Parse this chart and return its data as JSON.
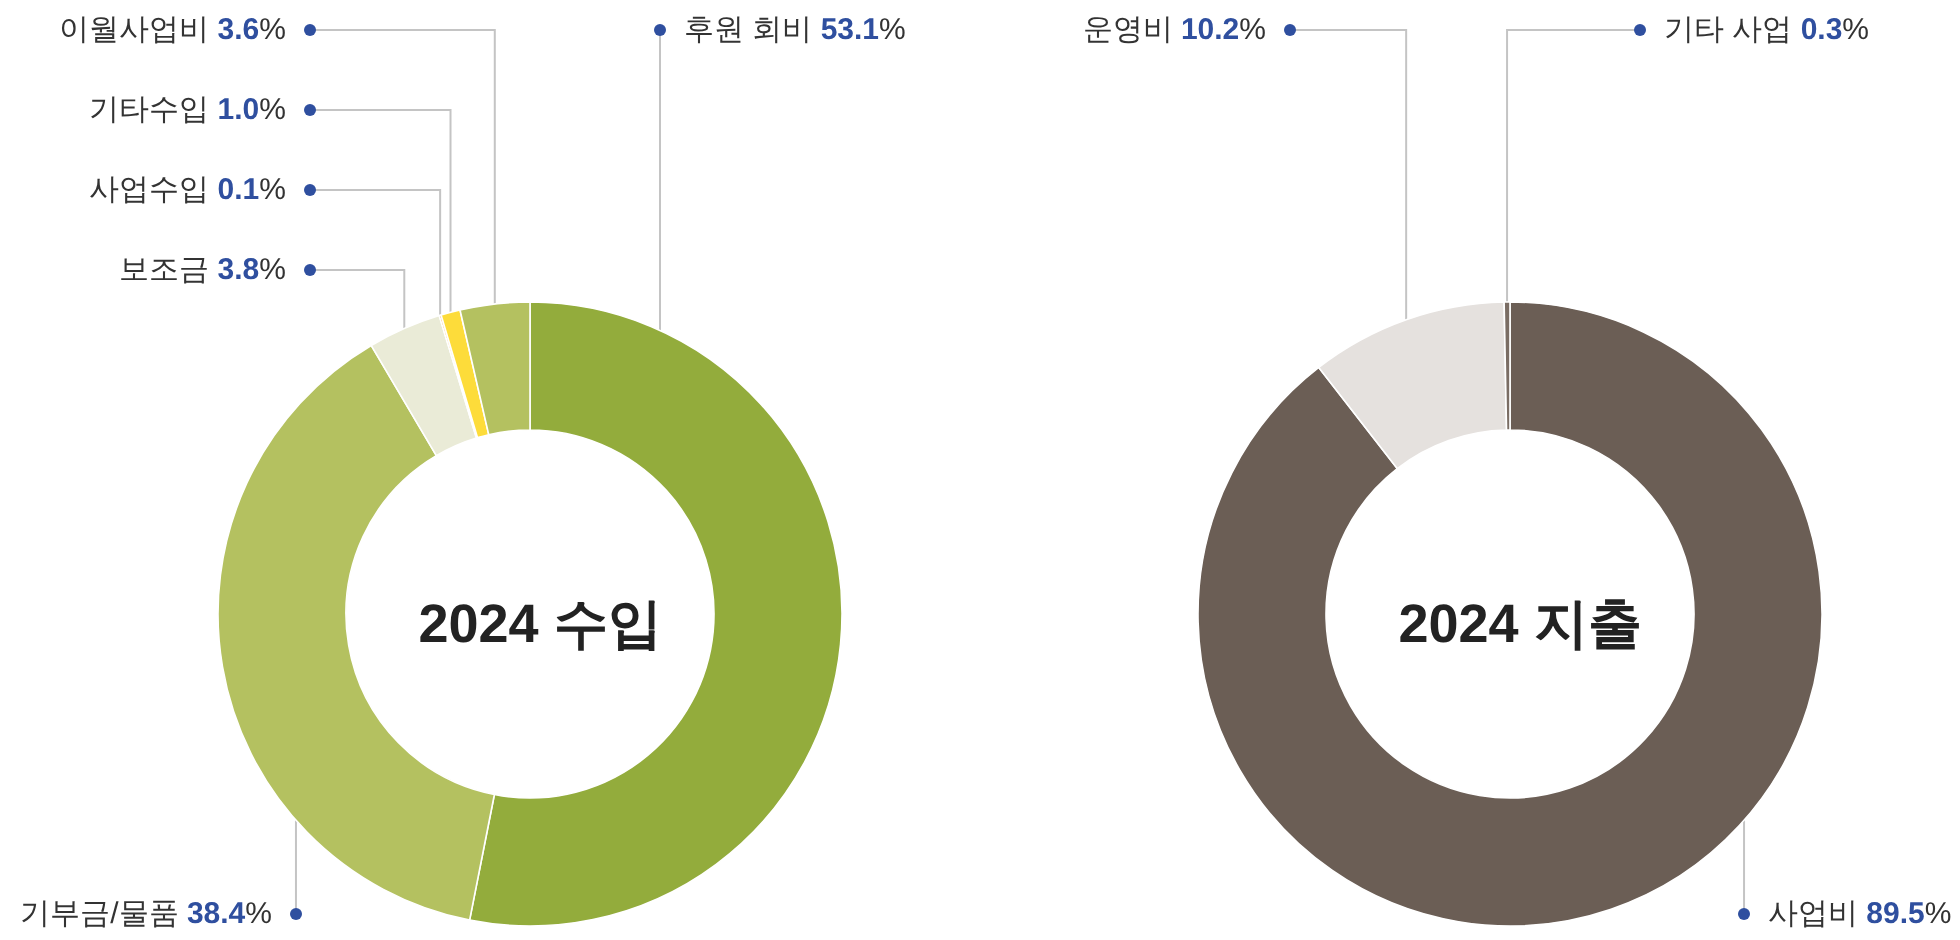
{
  "chart_data": [
    {
      "type": "donut",
      "title": "2024 수입",
      "categories": [
        "후원 회비",
        "기부금/물품",
        "보조금",
        "사업수입",
        "기타수입",
        "이월사업비"
      ],
      "values": [
        53.1,
        38.4,
        3.8,
        0.1,
        1.0,
        3.6
      ],
      "colors": [
        "#93ac3c",
        "#b4c160",
        "#eaebd7",
        "#f5a033",
        "#fddc3a",
        "#b4c160"
      ],
      "value_labels": [
        "53.1%",
        "38.4%",
        "3.8%",
        "0.1%",
        "1.0%",
        "3.6%"
      ]
    },
    {
      "type": "donut",
      "title": "2024 지출",
      "categories": [
        "사업비",
        "운영비",
        "기타 사업"
      ],
      "values": [
        89.5,
        10.2,
        0.3
      ],
      "colors": [
        "#6b5e55",
        "#e5e1de",
        "#7a6d64"
      ],
      "value_labels": [
        "89.5%",
        "10.2%",
        "0.3%"
      ]
    }
  ]
}
